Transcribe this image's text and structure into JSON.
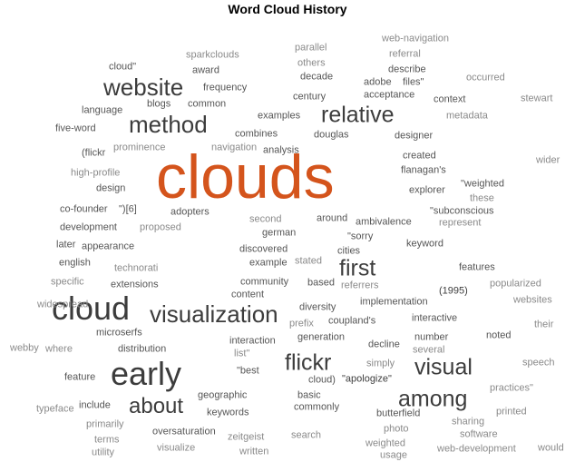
{
  "title": "Word Cloud History",
  "colors": {
    "accent": "#d4541c",
    "dark": "#3c3c3c",
    "mid": "#555555",
    "light": "#8a8a8a"
  },
  "words": [
    {
      "text": "clouds",
      "tone": "accent"
    },
    {
      "text": "cloud",
      "tone": "dark"
    },
    {
      "text": "early",
      "tone": "dark"
    },
    {
      "text": "website",
      "tone": "dark"
    },
    {
      "text": "method",
      "tone": "dark"
    },
    {
      "text": "relative",
      "tone": "dark"
    },
    {
      "text": "visualization",
      "tone": "dark"
    },
    {
      "text": "first",
      "tone": "dark"
    },
    {
      "text": "flickr",
      "tone": "dark"
    },
    {
      "text": "visual",
      "tone": "dark"
    },
    {
      "text": "among",
      "tone": "dark"
    },
    {
      "text": "about",
      "tone": "dark"
    },
    {
      "text": "sparkclouds",
      "tone": "light"
    },
    {
      "text": "parallel",
      "tone": "light"
    },
    {
      "text": "web-navigation",
      "tone": "light"
    },
    {
      "text": "others",
      "tone": "light"
    },
    {
      "text": "referral",
      "tone": "light"
    },
    {
      "text": "cloud\"",
      "tone": "mid"
    },
    {
      "text": "award",
      "tone": "mid"
    },
    {
      "text": "decade",
      "tone": "mid"
    },
    {
      "text": "describe",
      "tone": "mid"
    },
    {
      "text": "occurred",
      "tone": "light"
    },
    {
      "text": "adobe",
      "tone": "mid"
    },
    {
      "text": "files\"",
      "tone": "mid"
    },
    {
      "text": "frequency",
      "tone": "mid"
    },
    {
      "text": "acceptance",
      "tone": "mid"
    },
    {
      "text": "century",
      "tone": "mid"
    },
    {
      "text": "context",
      "tone": "mid"
    },
    {
      "text": "stewart",
      "tone": "light"
    },
    {
      "text": "blogs",
      "tone": "mid"
    },
    {
      "text": "common",
      "tone": "mid"
    },
    {
      "text": "language",
      "tone": "mid"
    },
    {
      "text": "metadata",
      "tone": "light"
    },
    {
      "text": "examples",
      "tone": "mid"
    },
    {
      "text": "five-word",
      "tone": "mid"
    },
    {
      "text": "combines",
      "tone": "mid"
    },
    {
      "text": "douglas",
      "tone": "mid"
    },
    {
      "text": "designer",
      "tone": "mid"
    },
    {
      "text": "(flickr",
      "tone": "mid"
    },
    {
      "text": "prominence",
      "tone": "light"
    },
    {
      "text": "navigation",
      "tone": "light"
    },
    {
      "text": "analysis",
      "tone": "mid"
    },
    {
      "text": "created",
      "tone": "mid"
    },
    {
      "text": "wider",
      "tone": "light"
    },
    {
      "text": "flanagan's",
      "tone": "mid"
    },
    {
      "text": "high-profile",
      "tone": "light"
    },
    {
      "text": "design",
      "tone": "mid"
    },
    {
      "text": "\"weighted",
      "tone": "mid"
    },
    {
      "text": "explorer",
      "tone": "mid"
    },
    {
      "text": "these",
      "tone": "light"
    },
    {
      "text": "co-founder",
      "tone": "mid"
    },
    {
      "text": "\")[6]",
      "tone": "mid"
    },
    {
      "text": "adopters",
      "tone": "mid"
    },
    {
      "text": "\"subconscious",
      "tone": "mid"
    },
    {
      "text": "around",
      "tone": "mid"
    },
    {
      "text": "second",
      "tone": "light"
    },
    {
      "text": "ambivalence",
      "tone": "mid"
    },
    {
      "text": "represent",
      "tone": "light"
    },
    {
      "text": "development",
      "tone": "mid"
    },
    {
      "text": "proposed",
      "tone": "light"
    },
    {
      "text": "german",
      "tone": "mid"
    },
    {
      "text": "\"sorry",
      "tone": "mid"
    },
    {
      "text": "later",
      "tone": "mid"
    },
    {
      "text": "appearance",
      "tone": "mid"
    },
    {
      "text": "keyword",
      "tone": "mid"
    },
    {
      "text": "discovered",
      "tone": "mid"
    },
    {
      "text": "cities",
      "tone": "mid"
    },
    {
      "text": "english",
      "tone": "mid"
    },
    {
      "text": "technorati",
      "tone": "light"
    },
    {
      "text": "example",
      "tone": "mid"
    },
    {
      "text": "stated",
      "tone": "light"
    },
    {
      "text": "features",
      "tone": "mid"
    },
    {
      "text": "specific",
      "tone": "light"
    },
    {
      "text": "extensions",
      "tone": "mid"
    },
    {
      "text": "community",
      "tone": "mid"
    },
    {
      "text": "based",
      "tone": "mid"
    },
    {
      "text": "referrers",
      "tone": "light"
    },
    {
      "text": "popularized",
      "tone": "light"
    },
    {
      "text": "content",
      "tone": "mid"
    },
    {
      "text": "(1995)",
      "tone": "dark"
    },
    {
      "text": "websites",
      "tone": "light"
    },
    {
      "text": "implementation",
      "tone": "mid"
    },
    {
      "text": "diversity",
      "tone": "mid"
    },
    {
      "text": "widespread",
      "tone": "light"
    },
    {
      "text": "coupland's",
      "tone": "mid"
    },
    {
      "text": "interactive",
      "tone": "mid"
    },
    {
      "text": "prefix",
      "tone": "light"
    },
    {
      "text": "their",
      "tone": "light"
    },
    {
      "text": "microserfs",
      "tone": "mid"
    },
    {
      "text": "generation",
      "tone": "mid"
    },
    {
      "text": "number",
      "tone": "mid"
    },
    {
      "text": "noted",
      "tone": "mid"
    },
    {
      "text": "webby",
      "tone": "light"
    },
    {
      "text": "where",
      "tone": "light"
    },
    {
      "text": "interaction",
      "tone": "mid"
    },
    {
      "text": "decline",
      "tone": "mid"
    },
    {
      "text": "distribution",
      "tone": "mid"
    },
    {
      "text": "list\"",
      "tone": "light"
    },
    {
      "text": "several",
      "tone": "light"
    },
    {
      "text": "simply",
      "tone": "light"
    },
    {
      "text": "speech",
      "tone": "light"
    },
    {
      "text": "feature",
      "tone": "mid"
    },
    {
      "text": "\"best",
      "tone": "mid"
    },
    {
      "text": "cloud)",
      "tone": "mid"
    },
    {
      "text": "\"apologize\"",
      "tone": "dark"
    },
    {
      "text": "practices\"",
      "tone": "light"
    },
    {
      "text": "typeface",
      "tone": "light"
    },
    {
      "text": "include",
      "tone": "mid"
    },
    {
      "text": "geographic",
      "tone": "mid"
    },
    {
      "text": "basic",
      "tone": "mid"
    },
    {
      "text": "commonly",
      "tone": "mid"
    },
    {
      "text": "butterfield",
      "tone": "mid"
    },
    {
      "text": "printed",
      "tone": "light"
    },
    {
      "text": "keywords",
      "tone": "mid"
    },
    {
      "text": "sharing",
      "tone": "light"
    },
    {
      "text": "primarily",
      "tone": "light"
    },
    {
      "text": "oversaturation",
      "tone": "mid"
    },
    {
      "text": "photo",
      "tone": "light"
    },
    {
      "text": "software",
      "tone": "light"
    },
    {
      "text": "terms",
      "tone": "light"
    },
    {
      "text": "zeitgeist",
      "tone": "light"
    },
    {
      "text": "search",
      "tone": "light"
    },
    {
      "text": "weighted",
      "tone": "light"
    },
    {
      "text": "would",
      "tone": "light"
    },
    {
      "text": "utility",
      "tone": "light"
    },
    {
      "text": "visualize",
      "tone": "light"
    },
    {
      "text": "written",
      "tone": "light"
    },
    {
      "text": "usage",
      "tone": "light"
    },
    {
      "text": "web-development",
      "tone": "light"
    }
  ]
}
